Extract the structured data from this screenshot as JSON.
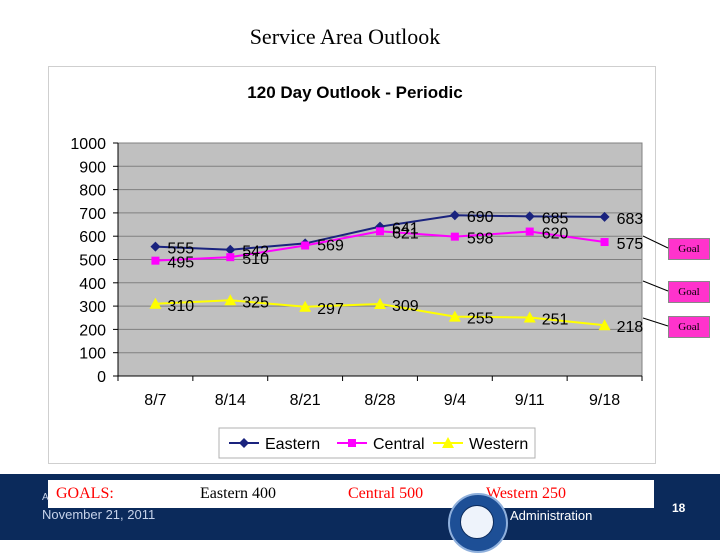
{
  "slide_title": "Service Area Outlook",
  "chart_data": {
    "type": "line",
    "title": "120 Day Outlook - Periodic",
    "categories": [
      "8/7",
      "8/14",
      "8/21",
      "8/28",
      "9/4",
      "9/11",
      "9/18"
    ],
    "ylim": [
      0,
      1000
    ],
    "yticks": [
      0,
      100,
      200,
      300,
      400,
      500,
      600,
      700,
      800,
      900,
      1000
    ],
    "grid": true,
    "legend_position": "bottom",
    "series": [
      {
        "name": "Eastern",
        "values": [
          555,
          542,
          569,
          641,
          690,
          685,
          683
        ],
        "color": "#1a237e",
        "marker": "diamond"
      },
      {
        "name": "Central",
        "values": [
          495,
          510,
          560,
          621,
          598,
          620,
          575
        ],
        "color": "#ff00ff",
        "marker": "square"
      },
      {
        "name": "Western",
        "values": [
          310,
          325,
          297,
          309,
          255,
          251,
          218
        ],
        "color": "#ffff00",
        "marker": "triangle"
      }
    ],
    "data_labels": {
      "Eastern": [
        "555",
        "542",
        "569",
        "641",
        "690",
        "685",
        "683"
      ],
      "Central": [
        "495",
        "510",
        "",
        "621",
        "598",
        "620",
        "575"
      ],
      "Western": [
        "310",
        "325",
        "297",
        "309",
        "255",
        "251",
        "218"
      ]
    }
  },
  "goal_labels": [
    "Goal",
    "Goal",
    "Goal"
  ],
  "goals": {
    "label": "GOALS:",
    "eastern": "Eastern 400",
    "central": "Central 500",
    "western": "Western 250"
  },
  "footer": {
    "date": "November 21, 2011",
    "admin": "Administration",
    "page": "18",
    "partial": "A"
  },
  "colors": {
    "plot_bg": "#c0c0c0",
    "footer_bg": "#0b2a5b",
    "goal_bg": "#ff33cc"
  }
}
